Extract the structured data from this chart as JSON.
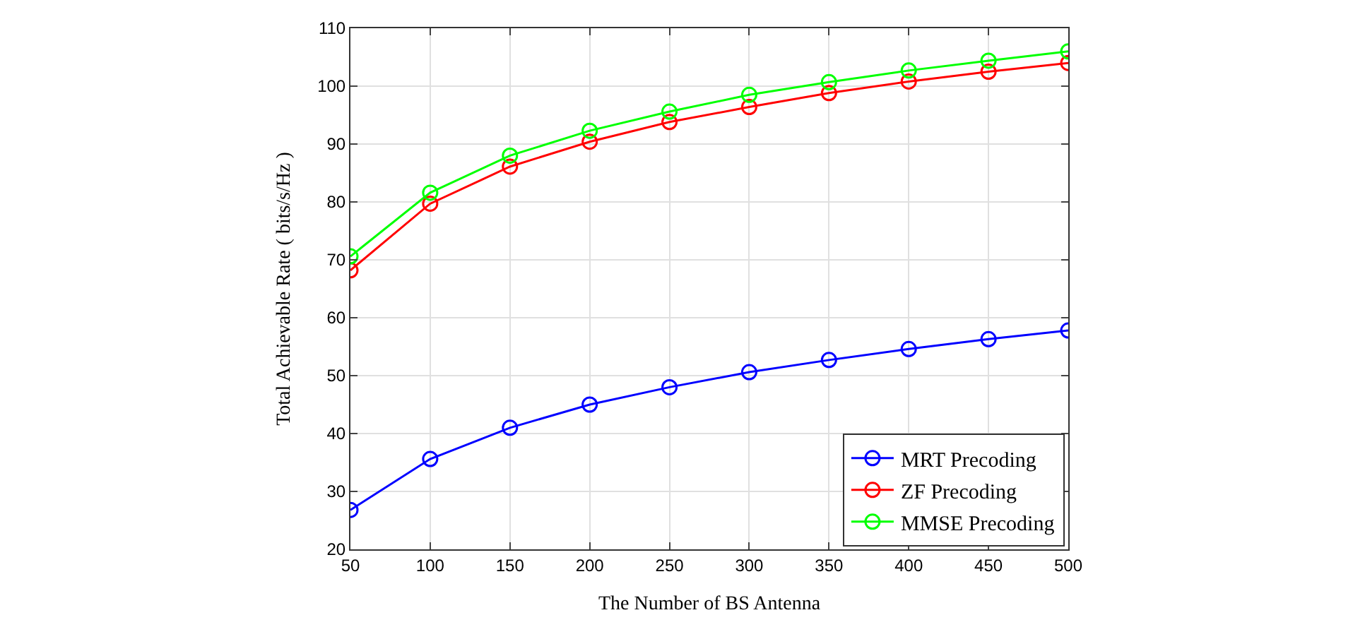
{
  "chart_data": {
    "type": "line",
    "xlabel": "The Number of BS Antenna",
    "ylabel": "Total Achievable Rate ( bits/s/Hz )",
    "x": [
      50,
      100,
      150,
      200,
      250,
      300,
      350,
      400,
      450,
      500
    ],
    "series": [
      {
        "name": "MRT Precoding",
        "color": "#0000ff",
        "values": [
          26.8,
          35.6,
          41,
          45,
          48,
          50.6,
          52.7,
          54.6,
          56.3,
          57.8
        ]
      },
      {
        "name": "ZF Precoding",
        "color": "#ff0000",
        "values": [
          68.2,
          79.7,
          86.1,
          90.4,
          93.8,
          96.4,
          98.8,
          100.8,
          102.5,
          104
        ]
      },
      {
        "name": "MMSE Precoding",
        "color": "#00ff00",
        "values": [
          70.6,
          81.6,
          88,
          92.3,
          95.6,
          98.5,
          100.7,
          102.7,
          104.4,
          106
        ]
      }
    ],
    "xlim": [
      50,
      500
    ],
    "xticks": [
      50,
      100,
      150,
      200,
      250,
      300,
      350,
      400,
      450,
      500
    ],
    "ylim": [
      20,
      110
    ],
    "yticks": [
      20,
      30,
      40,
      50,
      60,
      70,
      80,
      90,
      100,
      110
    ],
    "grid": true,
    "legend": "bottom right",
    "marker": "circle",
    "line_style": "solid"
  }
}
